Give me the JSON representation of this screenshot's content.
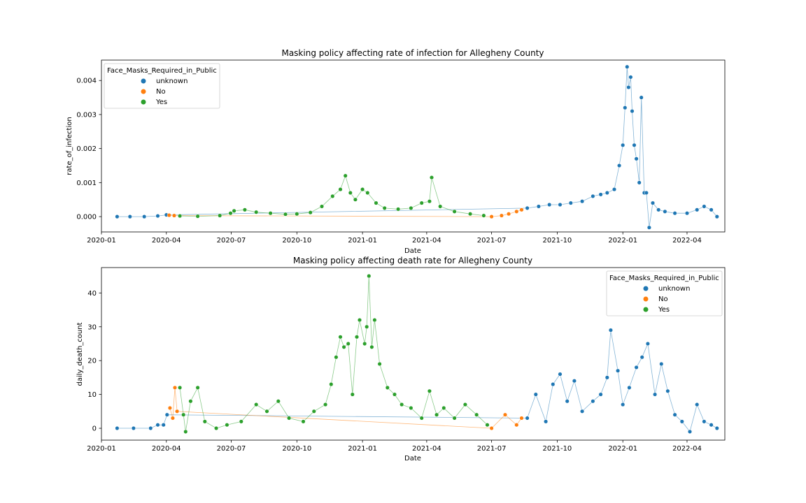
{
  "chart_data": [
    {
      "type": "scatter",
      "title": "Masking policy affecting rate of infection for Allegheny County",
      "xlabel": "Date",
      "ylabel": "rate_of_infection",
      "x_ticks": [
        "2020-01",
        "2020-04",
        "2020-07",
        "2020-10",
        "2021-01",
        "2021-04",
        "2021-07",
        "2021-10",
        "2022-01",
        "2022-04"
      ],
      "y_ticks": [
        "0.000",
        "0.001",
        "0.002",
        "0.003",
        "0.004"
      ],
      "xlim": [
        "2020-01-01",
        "2022-05-24"
      ],
      "ylim": [
        -0.00045,
        0.0046
      ],
      "legend": {
        "title": "Face_Masks_Required_in_Public",
        "placement": "upper-left",
        "entries": [
          "unknown",
          "No",
          "Yes"
        ]
      },
      "series": [
        {
          "name": "unknown",
          "color": "#1f77b4",
          "points": [
            [
              "2020-01-23",
              0.0
            ],
            [
              "2020-02-10",
              0.0
            ],
            [
              "2020-03-01",
              0.0
            ],
            [
              "2020-03-20",
              2e-05
            ],
            [
              "2020-04-01",
              5e-05
            ],
            [
              "2021-08-20",
              0.00025
            ],
            [
              "2021-09-05",
              0.0003
            ],
            [
              "2021-09-20",
              0.00035
            ],
            [
              "2021-10-05",
              0.00035
            ],
            [
              "2021-10-20",
              0.0004
            ],
            [
              "2021-11-05",
              0.00045
            ],
            [
              "2021-11-20",
              0.0006
            ],
            [
              "2021-12-01",
              0.00065
            ],
            [
              "2021-12-10",
              0.0007
            ],
            [
              "2021-12-20",
              0.0008
            ],
            [
              "2021-12-27",
              0.0015
            ],
            [
              "2022-01-01",
              0.0021
            ],
            [
              "2022-01-04",
              0.0032
            ],
            [
              "2022-01-07",
              0.0044
            ],
            [
              "2022-01-09",
              0.0038
            ],
            [
              "2022-01-12",
              0.0041
            ],
            [
              "2022-01-14",
              0.0031
            ],
            [
              "2022-01-17",
              0.0021
            ],
            [
              "2022-01-20",
              0.0017
            ],
            [
              "2022-01-24",
              0.001
            ],
            [
              "2022-01-27",
              0.0035
            ],
            [
              "2022-01-31",
              0.0007
            ],
            [
              "2022-02-03",
              0.0007
            ],
            [
              "2022-02-07",
              -0.00032
            ],
            [
              "2022-02-12",
              0.0004
            ],
            [
              "2022-02-20",
              0.0002
            ],
            [
              "2022-03-01",
              0.00015
            ],
            [
              "2022-03-15",
              0.0001
            ],
            [
              "2022-04-01",
              0.0001
            ],
            [
              "2022-04-15",
              0.0002
            ],
            [
              "2022-04-25",
              0.0003
            ],
            [
              "2022-05-05",
              0.0002
            ],
            [
              "2022-05-13",
              0.0
            ]
          ]
        },
        {
          "name": "No",
          "color": "#ff7f0e",
          "points": [
            [
              "2020-04-05",
              4e-05
            ],
            [
              "2020-04-12",
              3e-05
            ],
            [
              "2021-07-01",
              0.0
            ],
            [
              "2021-07-15",
              3e-05
            ],
            [
              "2021-07-25",
              8e-05
            ],
            [
              "2021-08-05",
              0.00015
            ],
            [
              "2021-08-12",
              0.0002
            ]
          ]
        },
        {
          "name": "Yes",
          "color": "#2ca02c",
          "points": [
            [
              "2020-04-20",
              2e-05
            ],
            [
              "2020-05-15",
              1e-05
            ],
            [
              "2020-06-15",
              3e-05
            ],
            [
              "2020-06-30",
              0.0001
            ],
            [
              "2020-07-05",
              0.00017
            ],
            [
              "2020-07-20",
              0.0002
            ],
            [
              "2020-08-05",
              0.00013
            ],
            [
              "2020-08-25",
              0.0001
            ],
            [
              "2020-09-15",
              7e-05
            ],
            [
              "2020-10-01",
              8e-05
            ],
            [
              "2020-10-20",
              0.00012
            ],
            [
              "2020-11-05",
              0.0003
            ],
            [
              "2020-11-20",
              0.0006
            ],
            [
              "2020-12-01",
              0.0008
            ],
            [
              "2020-12-08",
              0.0012
            ],
            [
              "2020-12-15",
              0.0007
            ],
            [
              "2020-12-22",
              0.0005
            ],
            [
              "2021-01-01",
              0.0008
            ],
            [
              "2021-01-08",
              0.0007
            ],
            [
              "2021-01-20",
              0.0004
            ],
            [
              "2021-02-01",
              0.00025
            ],
            [
              "2021-02-20",
              0.00022
            ],
            [
              "2021-03-10",
              0.00025
            ],
            [
              "2021-03-25",
              0.0004
            ],
            [
              "2021-04-05",
              0.00045
            ],
            [
              "2021-04-08",
              0.00115
            ],
            [
              "2021-04-20",
              0.0003
            ],
            [
              "2021-05-10",
              0.00015
            ],
            [
              "2021-06-01",
              8e-05
            ],
            [
              "2021-06-20",
              3e-05
            ]
          ]
        }
      ]
    },
    {
      "type": "scatter",
      "title": "Masking policy affecting death rate for Allegheny County",
      "xlabel": "Date",
      "ylabel": "daily_death_count",
      "x_ticks": [
        "2020-01",
        "2020-04",
        "2020-07",
        "2020-10",
        "2021-01",
        "2021-04",
        "2021-07",
        "2021-10",
        "2022-01",
        "2022-04"
      ],
      "y_ticks": [
        "0",
        "10",
        "20",
        "30",
        "40"
      ],
      "xlim": [
        "2020-01-01",
        "2022-05-24"
      ],
      "ylim": [
        -3.5,
        47.5
      ],
      "legend": {
        "title": "Face_Masks_Required_in_Public",
        "placement": "upper-right",
        "entries": [
          "unknown",
          "No",
          "Yes"
        ]
      },
      "series": [
        {
          "name": "unknown",
          "color": "#1f77b4",
          "points": [
            [
              "2020-01-23",
              0
            ],
            [
              "2020-02-15",
              0
            ],
            [
              "2020-03-10",
              0
            ],
            [
              "2020-03-20",
              1
            ],
            [
              "2020-03-28",
              1
            ],
            [
              "2020-04-02",
              4
            ],
            [
              "2021-08-20",
              3
            ],
            [
              "2021-09-01",
              10
            ],
            [
              "2021-09-15",
              2
            ],
            [
              "2021-09-25",
              13
            ],
            [
              "2021-10-05",
              16
            ],
            [
              "2021-10-15",
              8
            ],
            [
              "2021-10-25",
              14
            ],
            [
              "2021-11-05",
              5
            ],
            [
              "2021-11-20",
              8
            ],
            [
              "2021-12-01",
              10
            ],
            [
              "2021-12-10",
              15
            ],
            [
              "2021-12-15",
              29
            ],
            [
              "2021-12-25",
              17
            ],
            [
              "2022-01-01",
              7
            ],
            [
              "2022-01-10",
              12
            ],
            [
              "2022-01-20",
              18
            ],
            [
              "2022-01-28",
              21
            ],
            [
              "2022-02-05",
              25
            ],
            [
              "2022-02-15",
              10
            ],
            [
              "2022-02-24",
              19
            ],
            [
              "2022-03-05",
              11
            ],
            [
              "2022-03-15",
              4
            ],
            [
              "2022-03-25",
              2
            ],
            [
              "2022-04-05",
              -1
            ],
            [
              "2022-04-15",
              7
            ],
            [
              "2022-04-25",
              2
            ],
            [
              "2022-05-05",
              1
            ],
            [
              "2022-05-13",
              0
            ]
          ]
        },
        {
          "name": "No",
          "color": "#ff7f0e",
          "points": [
            [
              "2020-04-06",
              6
            ],
            [
              "2020-04-10",
              3
            ],
            [
              "2020-04-13",
              12
            ],
            [
              "2020-04-16",
              5
            ],
            [
              "2021-07-01",
              0
            ],
            [
              "2021-07-20",
              4
            ],
            [
              "2021-08-05",
              1
            ],
            [
              "2021-08-12",
              3
            ]
          ]
        },
        {
          "name": "Yes",
          "color": "#2ca02c",
          "points": [
            [
              "2020-04-20",
              12
            ],
            [
              "2020-04-25",
              4
            ],
            [
              "2020-04-28",
              -1
            ],
            [
              "2020-05-05",
              8
            ],
            [
              "2020-05-15",
              12
            ],
            [
              "2020-05-25",
              2
            ],
            [
              "2020-06-10",
              0
            ],
            [
              "2020-06-25",
              1
            ],
            [
              "2020-07-15",
              2
            ],
            [
              "2020-08-05",
              7
            ],
            [
              "2020-08-20",
              5
            ],
            [
              "2020-09-05",
              8
            ],
            [
              "2020-09-20",
              3
            ],
            [
              "2020-10-10",
              2
            ],
            [
              "2020-10-25",
              5
            ],
            [
              "2020-11-10",
              7
            ],
            [
              "2020-11-18",
              13
            ],
            [
              "2020-11-25",
              21
            ],
            [
              "2020-12-01",
              27
            ],
            [
              "2020-12-06",
              24
            ],
            [
              "2020-12-12",
              25
            ],
            [
              "2020-12-18",
              10
            ],
            [
              "2020-12-24",
              27
            ],
            [
              "2020-12-28",
              32
            ],
            [
              "2021-01-04",
              25
            ],
            [
              "2021-01-07",
              30
            ],
            [
              "2021-01-10",
              45
            ],
            [
              "2021-01-14",
              24
            ],
            [
              "2021-01-18",
              32
            ],
            [
              "2021-01-25",
              19
            ],
            [
              "2021-02-05",
              12
            ],
            [
              "2021-02-15",
              10
            ],
            [
              "2021-02-25",
              7
            ],
            [
              "2021-03-10",
              6
            ],
            [
              "2021-03-25",
              3
            ],
            [
              "2021-04-05",
              11
            ],
            [
              "2021-04-15",
              4
            ],
            [
              "2021-04-25",
              6
            ],
            [
              "2021-05-10",
              3
            ],
            [
              "2021-05-25",
              7
            ],
            [
              "2021-06-10",
              4
            ],
            [
              "2021-06-25",
              1
            ]
          ]
        }
      ]
    }
  ]
}
